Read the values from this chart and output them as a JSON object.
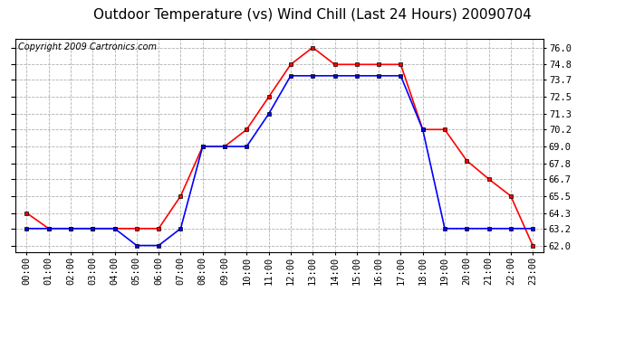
{
  "title": "Outdoor Temperature (vs) Wind Chill (Last 24 Hours) 20090704",
  "copyright": "Copyright 2009 Cartronics.com",
  "hours": [
    "00:00",
    "01:00",
    "02:00",
    "03:00",
    "04:00",
    "05:00",
    "06:00",
    "07:00",
    "08:00",
    "09:00",
    "10:00",
    "11:00",
    "12:00",
    "13:00",
    "14:00",
    "15:00",
    "16:00",
    "17:00",
    "18:00",
    "19:00",
    "20:00",
    "21:00",
    "22:00",
    "23:00"
  ],
  "temp": [
    64.3,
    63.2,
    63.2,
    63.2,
    63.2,
    63.2,
    63.2,
    65.5,
    69.0,
    69.0,
    70.2,
    72.5,
    74.8,
    76.0,
    74.8,
    74.8,
    74.8,
    74.8,
    70.2,
    70.2,
    68.0,
    66.7,
    65.5,
    62.0
  ],
  "windchill": [
    63.2,
    63.2,
    63.2,
    63.2,
    63.2,
    62.0,
    62.0,
    63.2,
    69.0,
    69.0,
    69.0,
    71.3,
    74.0,
    74.0,
    74.0,
    74.0,
    74.0,
    74.0,
    70.2,
    63.2,
    63.2,
    63.2,
    63.2,
    63.2
  ],
  "temp_color": "#ff0000",
  "windchill_color": "#0000ff",
  "bg_color": "#ffffff",
  "grid_color": "#b0b0b0",
  "ylim_low": 61.5,
  "ylim_high": 76.6,
  "yticks": [
    62.0,
    63.2,
    64.3,
    65.5,
    66.7,
    67.8,
    69.0,
    70.2,
    71.3,
    72.5,
    73.7,
    74.8,
    76.0
  ],
  "title_fontsize": 11,
  "copyright_fontsize": 7,
  "tick_fontsize": 7.5,
  "markersize": 3,
  "linewidth": 1.2
}
